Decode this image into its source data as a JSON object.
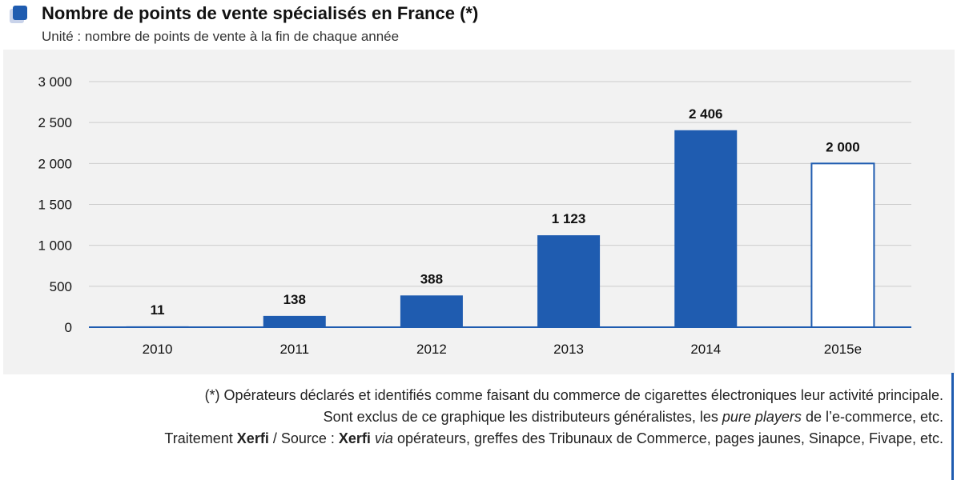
{
  "header": {
    "title": "Nombre de points de vente spécialisés en France (*)",
    "subtitle": "Unité : nombre de points de vente à la fin de chaque année"
  },
  "chart_data": {
    "type": "bar",
    "categories": [
      "2010",
      "2011",
      "2012",
      "2013",
      "2014",
      "2015e"
    ],
    "values": [
      11,
      138,
      388,
      1123,
      2406,
      2000
    ],
    "value_labels": [
      "11",
      "138",
      "388",
      "1 123",
      "2 406",
      "2 000"
    ],
    "estimated": [
      false,
      false,
      false,
      false,
      false,
      true
    ],
    "title": "",
    "xlabel": "",
    "ylabel": "",
    "ylim": [
      0,
      3000
    ],
    "yticks": [
      0,
      500,
      1000,
      1500,
      2000,
      2500,
      3000
    ],
    "ytick_labels": [
      "0",
      "500",
      "1 000",
      "1 500",
      "2 000",
      "2 500",
      "3 000"
    ],
    "grid": true,
    "legend": "none",
    "colors": {
      "bar": "#1f5cb0",
      "estimate_fill": "#ffffff",
      "estimate_stroke": "#1f5cb0",
      "grid": "#cccccc",
      "axis": "#1f5cb0"
    }
  },
  "footnotes": {
    "line1": "(*) Opérateurs déclarés et identifiés comme faisant du commerce de cigarettes électroniques leur activité principale.",
    "line2_prefix": "Sont exclus de ce graphique les distributeurs généralistes, les ",
    "line2_em": "pure players",
    "line2_suffix": " de l’e-commerce, etc.",
    "line3_a": "Traitement ",
    "line3_b": "Xerfi",
    "line3_c": " / Source : ",
    "line3_d": "Xerfi",
    "line3_e": "via",
    "line3_f": " opérateurs, greffes des Tribunaux de Commerce, pages jaunes, Sinapce, Fivape, etc."
  }
}
